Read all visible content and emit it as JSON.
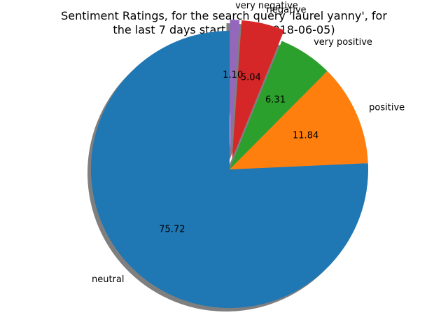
{
  "chart_data": {
    "type": "pie",
    "title_lines": [
      "Sentiment Ratings, for the search query 'laurel yanny', for",
      "the last 7 days starting at (2018-06-05)"
    ],
    "categories": [
      "neutral",
      "positive",
      "very positive",
      "negative",
      "very negative"
    ],
    "values": [
      75.72,
      11.84,
      6.31,
      5.04,
      1.1
    ],
    "value_labels": [
      "75.72",
      "11.84",
      "6.31",
      "5.04",
      "1.10"
    ],
    "colors": [
      "#1f77b4",
      "#ff7f0e",
      "#2ca02c",
      "#d62728",
      "#9467bd"
    ],
    "exploded": [
      false,
      false,
      false,
      true,
      true
    ],
    "shadow": true,
    "start_angle_deg": 90,
    "direction": "counterclockwise",
    "legend": "none"
  }
}
